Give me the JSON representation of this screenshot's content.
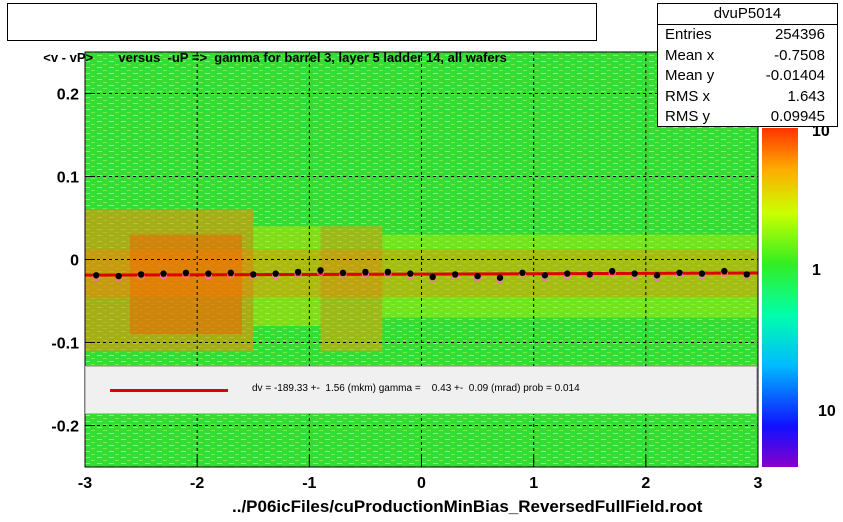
{
  "title": "<v - vP>       versus  -uP =>  gamma for barrel 3, layer 5 ladder 14, all wafers",
  "stats": {
    "name": "dvuP5014",
    "rows": [
      {
        "label": "Entries",
        "value": "254396"
      },
      {
        "label": "Mean x",
        "value": "-0.7508"
      },
      {
        "label": "Mean y",
        "value": "-0.01404"
      },
      {
        "label": "RMS x",
        "value": "1.643"
      },
      {
        "label": "RMS y",
        "value": "0.09945"
      }
    ]
  },
  "fit_text": "dv = -189.33 +-  1.56 (mkm) gamma =    0.43 +-  0.09 (mrad) prob = 0.014",
  "footer": "../P06icFiles/cuProductionMinBias_ReversedFullField.root",
  "colors": {
    "fit_line": "#e00000",
    "profile_points": "#000000",
    "profile_open": "#ff66cc",
    "background_green": "#33dd33"
  },
  "chart_data": {
    "type": "heatmap",
    "title": "<v - vP>       versus  -uP =>  gamma for barrel 3, layer 5 ladder 14, all wafers",
    "xlabel": "",
    "ylabel": "",
    "xlim": [
      -3,
      3
    ],
    "ylim": [
      -0.25,
      0.25
    ],
    "x_ticks": [
      "-3",
      "-2",
      "-1",
      "0",
      "1",
      "2",
      "3"
    ],
    "y_ticks": [
      "-0.2",
      "-0.1",
      "0",
      "0.1",
      "0.2"
    ],
    "colorbar_ticks": [
      "10",
      "1",
      "10"
    ],
    "grid": true,
    "fit_line": {
      "x": [
        -3,
        3
      ],
      "y": [
        -0.0189,
        -0.0163
      ]
    },
    "profile": {
      "x": [
        -2.9,
        -2.7,
        -2.5,
        -2.3,
        -2.1,
        -1.9,
        -1.7,
        -1.5,
        -1.3,
        -1.1,
        -0.9,
        -0.7,
        -0.5,
        -0.3,
        -0.1,
        0.1,
        0.3,
        0.5,
        0.7,
        0.9,
        1.1,
        1.3,
        1.5,
        1.7,
        1.9,
        2.1,
        2.3,
        2.5,
        2.7,
        2.9
      ],
      "y": [
        -0.019,
        -0.02,
        -0.018,
        -0.017,
        -0.016,
        -0.017,
        -0.016,
        -0.018,
        -0.017,
        -0.015,
        -0.013,
        -0.016,
        -0.015,
        -0.015,
        -0.017,
        -0.021,
        -0.018,
        -0.02,
        -0.022,
        -0.016,
        -0.019,
        -0.017,
        -0.018,
        -0.014,
        -0.017,
        -0.019,
        -0.016,
        -0.017,
        -0.014,
        -0.018
      ]
    }
  }
}
